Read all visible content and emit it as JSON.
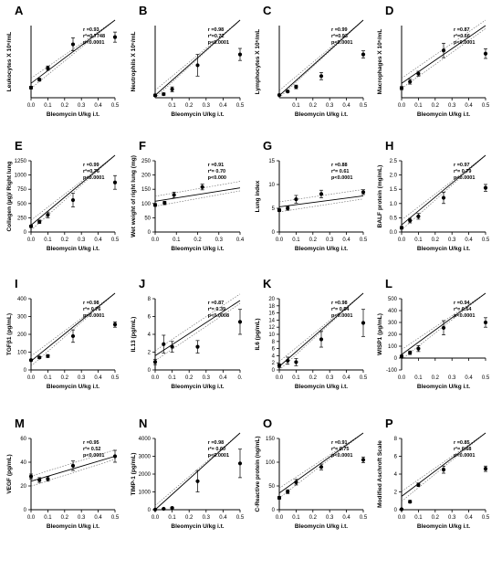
{
  "chart_data": [
    {
      "panel": "A",
      "type": "scatter",
      "xlabel": "Bleomycin U/kg i.t.",
      "ylabel": "Leukocytes X 10⁶/mL",
      "xlim": [
        0,
        0.5
      ],
      "xticks": [
        "0.0",
        "0.1",
        "0.2",
        "0.3",
        "0.4",
        "0.5"
      ],
      "ylim": [
        0,
        10
      ],
      "yticks": [],
      "points": [
        {
          "x": 0,
          "y": 1.4,
          "err": 0.2
        },
        {
          "x": 0.05,
          "y": 2.5,
          "err": 0.2
        },
        {
          "x": 0.1,
          "y": 4.1,
          "err": 0.3
        },
        {
          "x": 0.25,
          "y": 7.4,
          "err": 0.9
        },
        {
          "x": 0.5,
          "y": 8.4,
          "err": 0.7
        }
      ],
      "fit": [
        2.0,
        13.2
      ],
      "stats": [
        "r =0.93",
        "r²=0.7748",
        "p<0.0001"
      ]
    },
    {
      "panel": "B",
      "type": "scatter",
      "xlabel": "Bleomycin U/kg i.t.",
      "ylabel": "Neutrophils X 10⁶/mL",
      "xlim": [
        0,
        0.5
      ],
      "xticks": [
        "0.1",
        "0.2",
        "0.3",
        "0.4",
        "0.5"
      ],
      "ylim": [
        0,
        0.6
      ],
      "yticks": [],
      "points": [
        {
          "x": 0,
          "y": 0.02,
          "err": 0.01
        },
        {
          "x": 0.05,
          "y": 0.03,
          "err": 0.01
        },
        {
          "x": 0.1,
          "y": 0.07,
          "err": 0.02
        },
        {
          "x": 0.25,
          "y": 0.27,
          "err": 0.09
        },
        {
          "x": 0.5,
          "y": 0.36,
          "err": 0.05
        }
      ],
      "fit": [
        0.02,
        0.7
      ],
      "stats": [
        "r =0.98",
        "r²=0.72",
        "p<0.0001"
      ]
    },
    {
      "panel": "C",
      "type": "scatter",
      "xlabel": "Bleomycin U/kg i.t.",
      "ylabel": "Lymphocytes X 10⁶/mL",
      "xlim": [
        0,
        0.5
      ],
      "xticks": [
        "0.1",
        "0.2",
        "0.3",
        "0.4",
        "0.5"
      ],
      "ylim": [
        0,
        4
      ],
      "yticks": [],
      "points": [
        {
          "x": 0,
          "y": 0.15,
          "err": 0.05
        },
        {
          "x": 0.05,
          "y": 0.35,
          "err": 0.05
        },
        {
          "x": 0.1,
          "y": 0.6,
          "err": 0.1
        },
        {
          "x": 0.25,
          "y": 1.2,
          "err": 0.2
        },
        {
          "x": 0.5,
          "y": 2.4,
          "err": 0.2
        }
      ],
      "fit": [
        0.12,
        4.6
      ],
      "stats": [
        "r =0.99",
        "r²=0.93",
        "p<0.0001"
      ]
    },
    {
      "panel": "D",
      "type": "scatter",
      "xlabel": "Bleomycin U/kg i.t.",
      "ylabel": "Macrophages X 10⁶/mL",
      "xlim": [
        0,
        0.5
      ],
      "xticks": [
        "0.0",
        "0.1",
        "0.2",
        "0.3",
        "0.4",
        "0.5"
      ],
      "ylim": [
        0,
        9
      ],
      "yticks": [],
      "points": [
        {
          "x": 0,
          "y": 1.2,
          "err": 0.2
        },
        {
          "x": 0.05,
          "y": 2.0,
          "err": 0.3
        },
        {
          "x": 0.1,
          "y": 3.0,
          "err": 0.3
        },
        {
          "x": 0.25,
          "y": 5.9,
          "err": 0.9
        },
        {
          "x": 0.5,
          "y": 5.5,
          "err": 0.6
        }
      ],
      "fit": [
        1.8,
        9.0
      ],
      "stats": [
        "r =0.87",
        "r²=0.66",
        "p<0.0001"
      ]
    },
    {
      "panel": "E",
      "type": "scatter",
      "xlabel": "Bleomycin U/kg i.t.",
      "ylabel": "Collagen (µg)/ Right lung",
      "xlim": [
        0,
        0.5
      ],
      "xticks": [
        "0.0",
        "0.1",
        "0.2",
        "0.3",
        "0.4",
        "0.5"
      ],
      "ylim": [
        0,
        1250
      ],
      "yticks": [
        "0",
        "250",
        "500",
        "750",
        "1000",
        "1250"
      ],
      "points": [
        {
          "x": 0,
          "y": 100,
          "err": 20
        },
        {
          "x": 0.05,
          "y": 180,
          "err": 30
        },
        {
          "x": 0.1,
          "y": 300,
          "err": 50
        },
        {
          "x": 0.25,
          "y": 560,
          "err": 120
        },
        {
          "x": 0.5,
          "y": 870,
          "err": 120
        }
      ],
      "fit": [
        120,
        1550
      ],
      "stats": [
        "r =0.99",
        "r²=0.76",
        "p<0.0001"
      ]
    },
    {
      "panel": "F",
      "type": "scatter",
      "xlabel": "Bleomycin U/kg i.t.",
      "ylabel": "Wet weight of right lung (mg)",
      "xlim": [
        0,
        0.45
      ],
      "xticks": [
        "0.0",
        "0.1",
        "0.2",
        "0.3",
        "0.4"
      ],
      "ylim": [
        0,
        250
      ],
      "yticks": [
        "0",
        "50",
        "100",
        "150",
        "200",
        "250"
      ],
      "points": [
        {
          "x": 0,
          "y": 95,
          "err": 5
        },
        {
          "x": 0.05,
          "y": 102,
          "err": 6
        },
        {
          "x": 0.1,
          "y": 130,
          "err": 10
        },
        {
          "x": 0.25,
          "y": 158,
          "err": 10
        }
      ],
      "fit": [
        108,
        160
      ],
      "stats": [
        "r =0.91",
        "r²= 0.70",
        "p<0.000"
      ]
    },
    {
      "panel": "G",
      "type": "scatter",
      "xlabel": "Bleomycin U/kg i.t.",
      "ylabel": "Lung index",
      "xlim": [
        0,
        0.5
      ],
      "xticks": [
        "0.0",
        "0.1",
        "0.2",
        "0.3",
        "0.4",
        "0.5"
      ],
      "ylim": [
        0,
        15
      ],
      "yticks": [
        "0",
        "5",
        "10",
        "15"
      ],
      "points": [
        {
          "x": 0,
          "y": 4.6,
          "err": 0.3
        },
        {
          "x": 0.05,
          "y": 5.0,
          "err": 0.4
        },
        {
          "x": 0.1,
          "y": 6.9,
          "err": 0.8
        },
        {
          "x": 0.25,
          "y": 8.0,
          "err": 0.8
        },
        {
          "x": 0.5,
          "y": 8.4,
          "err": 0.5
        }
      ],
      "fit": [
        5.3,
        7.6
      ],
      "stats": [
        "r =0.88",
        "r²= 0.61",
        "p<0.0001"
      ]
    },
    {
      "panel": "H",
      "type": "scatter",
      "xlabel": "Bleomycin U/kg i.t.",
      "ylabel": "BALF protein (mg/mL)",
      "xlim": [
        0,
        0.5
      ],
      "xticks": [
        "0.0",
        "0.1",
        "0.2",
        "0.3",
        "0.4",
        "0.5"
      ],
      "ylim": [
        0,
        2.5
      ],
      "yticks": [
        "0.0",
        "0.5",
        "1.0",
        "1.5",
        "2.0",
        "2.5"
      ],
      "points": [
        {
          "x": 0,
          "y": 0.15,
          "err": 0.05
        },
        {
          "x": 0.05,
          "y": 0.4,
          "err": 0.08
        },
        {
          "x": 0.1,
          "y": 0.55,
          "err": 0.1
        },
        {
          "x": 0.25,
          "y": 1.2,
          "err": 0.2
        },
        {
          "x": 0.5,
          "y": 1.55,
          "err": 0.12
        }
      ],
      "fit": [
        0.25,
        2.8
      ],
      "stats": [
        "r =0.97",
        "r²= 0.79",
        "p<0.0001"
      ]
    },
    {
      "panel": "I",
      "type": "scatter",
      "xlabel": "Bleomycin U/kg i.t.",
      "ylabel": "TGFβ1 (pg/mL)",
      "xlim": [
        0,
        0.5
      ],
      "xticks": [
        "0.0",
        "0.1",
        "0.2",
        "0.3",
        "0.4",
        "0.5"
      ],
      "ylim": [
        0,
        400
      ],
      "yticks": [
        "0",
        "100",
        "200",
        "300",
        "400"
      ],
      "points": [
        {
          "x": 0,
          "y": 55,
          "err": 5
        },
        {
          "x": 0.05,
          "y": 70,
          "err": 6
        },
        {
          "x": 0.1,
          "y": 78,
          "err": 8
        },
        {
          "x": 0.25,
          "y": 190,
          "err": 35
        },
        {
          "x": 0.5,
          "y": 255,
          "err": 15
        }
      ],
      "fit": [
        50,
        460
      ],
      "stats": [
        "r =0.98",
        "r²= 0.76",
        "p<0.0001"
      ]
    },
    {
      "panel": "J",
      "type": "scatter",
      "xlabel": "Bleomycin U/kg i.t.",
      "ylabel": "IL13 (pg/mL)",
      "xlim": [
        0,
        0.5
      ],
      "xticks": [
        "0.0",
        "0.1",
        "0.2",
        "0.3",
        "0.4",
        "0."
      ],
      "ylim": [
        0,
        8
      ],
      "yticks": [
        "0",
        "2",
        "4",
        "6",
        "8"
      ],
      "points": [
        {
          "x": 0,
          "y": 0.9,
          "err": 0.3
        },
        {
          "x": 0.05,
          "y": 2.9,
          "err": 1.0
        },
        {
          "x": 0.1,
          "y": 2.6,
          "err": 0.6
        },
        {
          "x": 0.25,
          "y": 2.6,
          "err": 0.7
        },
        {
          "x": 0.5,
          "y": 5.4,
          "err": 1.4
        }
      ],
      "fit": [
        1.6,
        7.8
      ],
      "stats": [
        "r =0.87",
        "r²= 0.39",
        "p<0.0008"
      ]
    },
    {
      "panel": "K",
      "type": "scatter",
      "xlabel": "Bleomycin U/kg i.t.",
      "ylabel": "IL6 (pg/mL)",
      "xlim": [
        0,
        0.5
      ],
      "xticks": [
        "0.0",
        "0.1",
        "0.2",
        "0.3",
        "0.4",
        "0.5"
      ],
      "ylim": [
        0,
        20
      ],
      "yticks": [
        "0",
        "2",
        "4",
        "6",
        "8",
        "10",
        "12",
        "14",
        "16",
        "18",
        "20"
      ],
      "points": [
        {
          "x": 0,
          "y": 1.2,
          "err": 0.5
        },
        {
          "x": 0.05,
          "y": 2.6,
          "err": 1.0
        },
        {
          "x": 0.1,
          "y": 2.2,
          "err": 1.0
        },
        {
          "x": 0.25,
          "y": 8.6,
          "err": 2.2
        },
        {
          "x": 0.5,
          "y": 13.2,
          "err": 3.8
        }
      ],
      "fit": [
        1.0,
        25.0
      ],
      "stats": [
        "r =0.98",
        "r²= 0.54",
        "p<0.0001"
      ]
    },
    {
      "panel": "L",
      "type": "scatter",
      "xlabel": "Bleomycin U/kg i.t.",
      "ylabel": "WISP1 (pg/mL)",
      "xlim": [
        0,
        0.5
      ],
      "xticks": [
        "0.0",
        "0.1",
        "0.2",
        "0.3",
        "0.4",
        "0.5"
      ],
      "ylim": [
        -100,
        500
      ],
      "yticks": [
        "-100",
        "0",
        "100",
        "200",
        "300",
        "400",
        "500"
      ],
      "points": [
        {
          "x": 0,
          "y": 15,
          "err": 10
        },
        {
          "x": 0.05,
          "y": 45,
          "err": 15
        },
        {
          "x": 0.1,
          "y": 80,
          "err": 25
        },
        {
          "x": 0.25,
          "y": 255,
          "err": 60
        },
        {
          "x": 0.5,
          "y": 300,
          "err": 40
        }
      ],
      "fit": [
        30,
        600
      ],
      "stats": [
        "r =0.94",
        "r²= 0.64",
        "p<0.0001"
      ]
    },
    {
      "panel": "M",
      "type": "scatter",
      "xlabel": "Bleomycin U/kg i.t.",
      "ylabel": "VEGF (pg/mL)",
      "xlim": [
        0,
        0.5
      ],
      "xticks": [
        "0.0",
        "0.1",
        "0.2",
        "0.3",
        "0.4",
        "0.5"
      ],
      "ylim": [
        0,
        60
      ],
      "yticks": [
        "0",
        "20",
        "40",
        "60"
      ],
      "points": [
        {
          "x": 0,
          "y": 28,
          "err": 2
        },
        {
          "x": 0.05,
          "y": 25,
          "err": 2
        },
        {
          "x": 0.1,
          "y": 26,
          "err": 2
        },
        {
          "x": 0.25,
          "y": 37,
          "err": 4
        },
        {
          "x": 0.5,
          "y": 45,
          "err": 5
        }
      ],
      "fit": [
        24,
        45
      ],
      "stats": [
        "r =0.95",
        "r²= 0.52",
        "p<0.0001"
      ]
    },
    {
      "panel": "N",
      "type": "scatter",
      "xlabel": "Bleomycin U/kg i.t.",
      "ylabel": "TIMP-1 (pg/mL)",
      "xlim": [
        0,
        0.5
      ],
      "xticks": [
        "0.0",
        "0.1",
        "0.2",
        "0.3",
        "0.4",
        "0.5"
      ],
      "ylim": [
        0,
        4000
      ],
      "yticks": [
        "0",
        "1000",
        "2000",
        "3000",
        "4000"
      ],
      "points": [
        {
          "x": 0,
          "y": 10,
          "err": 10
        },
        {
          "x": 0.05,
          "y": 50,
          "err": 20
        },
        {
          "x": 0.1,
          "y": 100,
          "err": 40
        },
        {
          "x": 0.25,
          "y": 1600,
          "err": 600
        },
        {
          "x": 0.5,
          "y": 2600,
          "err": 800
        }
      ],
      "fit": [
        -50,
        5600
      ],
      "stats": [
        "r =0.98",
        "r²= 0.60",
        "p<0.0001"
      ]
    },
    {
      "panel": "O",
      "type": "scatter",
      "xlabel": "Bleomycin U/kg i.t.",
      "ylabel": "C-Reactive protein (ng/mL)",
      "xlim": [
        0,
        0.5
      ],
      "xticks": [
        "0.0",
        "0.1",
        "0.2",
        "0.3",
        "0.4",
        "0.5"
      ],
      "ylim": [
        0,
        150
      ],
      "yticks": [
        "0",
        "50",
        "100",
        "150"
      ],
      "points": [
        {
          "x": 0,
          "y": 25,
          "err": 3
        },
        {
          "x": 0.05,
          "y": 38,
          "err": 4
        },
        {
          "x": 0.1,
          "y": 58,
          "err": 6
        },
        {
          "x": 0.25,
          "y": 90,
          "err": 6
        },
        {
          "x": 0.5,
          "y": 105,
          "err": 6
        }
      ],
      "fit": [
        35,
        180
      ],
      "stats": [
        "r =0.91",
        "r²= 0.75",
        "p<0.0001"
      ]
    },
    {
      "panel": "P",
      "type": "scatter",
      "xlabel": "Bleomycin U/kg i.t.",
      "ylabel": "Modified Aschroft Scale",
      "xlim": [
        0,
        0.5
      ],
      "xticks": [
        "0.0",
        "0.1",
        "0.2",
        "0.3",
        "0.4",
        "0.5"
      ],
      "ylim": [
        0,
        8
      ],
      "yticks": [
        "0",
        "2",
        "4",
        "6",
        "8"
      ],
      "points": [
        {
          "x": 0,
          "y": 0.05,
          "err": 0.05
        },
        {
          "x": 0.05,
          "y": 0.9,
          "err": 0.15
        },
        {
          "x": 0.1,
          "y": 2.8,
          "err": 0.2
        },
        {
          "x": 0.25,
          "y": 4.5,
          "err": 0.4
        },
        {
          "x": 0.5,
          "y": 4.6,
          "err": 0.3
        }
      ],
      "fit": [
        1.5,
        9.0
      ],
      "stats": [
        "r =0.85",
        "r²= 0.68",
        "p<0.0001"
      ]
    }
  ]
}
